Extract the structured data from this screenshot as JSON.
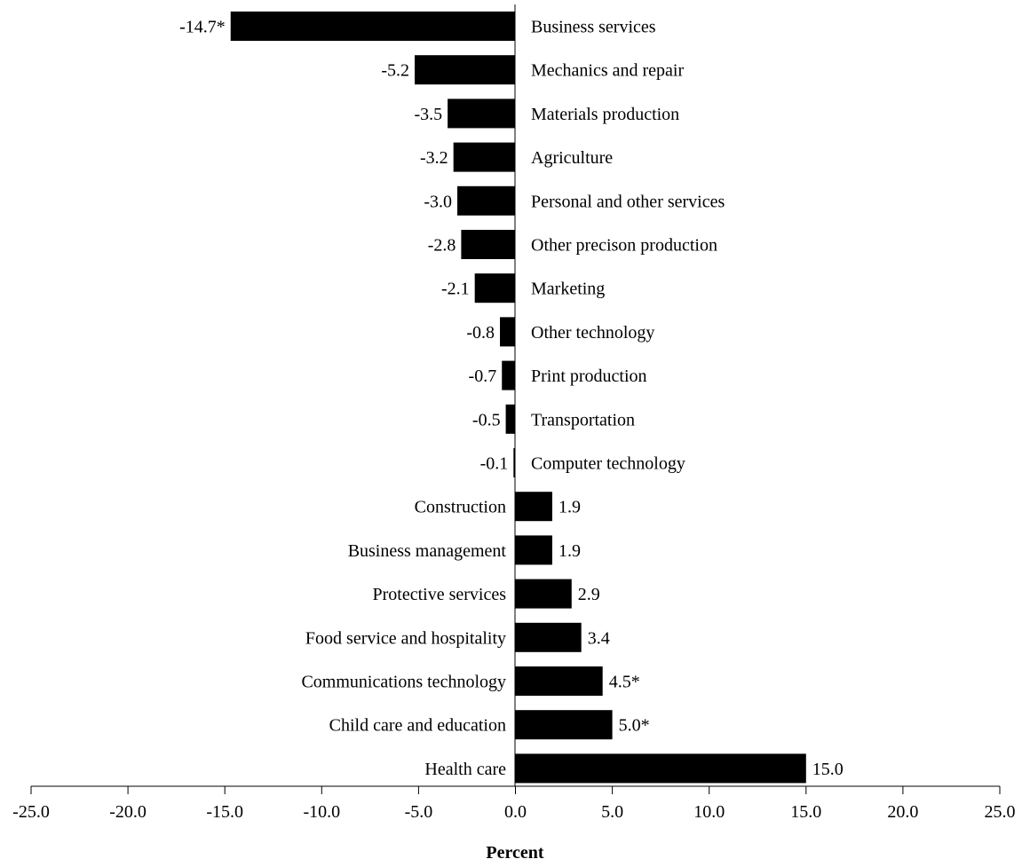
{
  "chart_data": {
    "type": "bar",
    "orientation": "horizontal",
    "categories": [
      "Business services",
      "Mechanics and repair",
      "Materials production",
      "Agriculture",
      "Personal and other services",
      "Other precison production",
      "Marketing",
      "Other technology",
      "Print production",
      "Transportation",
      "Computer technology",
      "Construction",
      "Business management",
      "Protective services",
      "Food service and hospitality",
      "Communications technology",
      "Child care and education",
      "Health care"
    ],
    "values": [
      -14.7,
      -5.2,
      -3.5,
      -3.2,
      -3.0,
      -2.8,
      -2.1,
      -0.8,
      -0.7,
      -0.5,
      -0.1,
      1.9,
      1.9,
      2.9,
      3.4,
      4.5,
      5.0,
      15.0
    ],
    "value_labels": [
      "-14.7*",
      "-5.2",
      "-3.5",
      "-3.2",
      "-3.0",
      "-2.8",
      "-2.1",
      "-0.8",
      "-0.7",
      "-0.5",
      "-0.1",
      "1.9",
      "1.9",
      "2.9",
      "3.4",
      "4.5*",
      "5.0*",
      "15.0"
    ],
    "title": "",
    "xlabel": "Percent",
    "ylabel": "",
    "xlim": [
      -25,
      25
    ],
    "xticks": [
      -25,
      -20,
      -15,
      -10,
      -5,
      0,
      5,
      10,
      15,
      20,
      25
    ],
    "xtick_labels": [
      "-25.0",
      "-20.0",
      "-15.0",
      "-10.0",
      "-5.0",
      "0.0",
      "5.0",
      "10.0",
      "15.0",
      "20.0",
      "25.0"
    ],
    "bar_color": "#000000",
    "grid": false,
    "legend": "none"
  }
}
